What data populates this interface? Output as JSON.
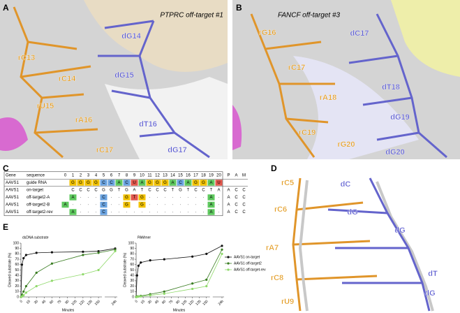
{
  "panel_a": {
    "letter": "A",
    "title": "PTPRC off-target #1",
    "labels": [
      "rC13",
      "dG14",
      "rC14",
      "dG15",
      "rU15",
      "rA16",
      "dT16",
      "rC17",
      "dG17"
    ]
  },
  "panel_b": {
    "letter": "B",
    "title": "FANCF off-target #3",
    "labels": [
      "rG16",
      "dC17",
      "rC17",
      "dT18",
      "rA18",
      "dG19",
      "rC19",
      "rG20",
      "dG20"
    ]
  },
  "panel_c": {
    "letter": "C",
    "header": [
      "Gene",
      "sequence",
      "0",
      "1",
      "2",
      "3",
      "4",
      "5",
      "6",
      "7",
      "8",
      "9",
      "10",
      "11",
      "12",
      "13",
      "14",
      "15",
      "16",
      "17",
      "18",
      "19",
      "20",
      "P",
      "A",
      "M"
    ],
    "rows": [
      [
        "AAVS1",
        "guide RNA",
        null,
        "G",
        "G",
        "G",
        "G",
        "C",
        "C",
        "A",
        "C",
        "U",
        "A",
        "G",
        "G",
        "G",
        "A",
        "C",
        "A",
        "G",
        "G",
        "A",
        "U",
        null,
        null,
        null
      ],
      [
        "AAVS1",
        "on-target",
        null,
        "C",
        "C",
        "C",
        "C",
        "G",
        "G",
        "T",
        "G",
        "A",
        "T",
        "C",
        "C",
        "C",
        "T",
        "G",
        "T",
        "C",
        "C",
        "T",
        "A",
        "A",
        "C",
        "C"
      ],
      [
        "AAVS1",
        "off-target2-A",
        null,
        "A",
        "·",
        "·",
        "·",
        "C",
        "·",
        "·",
        "G",
        "T",
        "G",
        "·",
        "·",
        "·",
        "·",
        "·",
        "·",
        "·",
        "·",
        "A",
        "·",
        "A",
        "C",
        "C"
      ],
      [
        "AAVS1",
        "off-target2-B",
        "A",
        "·",
        "·",
        "·",
        "·",
        "C",
        "·",
        "·",
        "G",
        null,
        "G",
        "·",
        "·",
        "·",
        "·",
        "·",
        "·",
        "·",
        "·",
        "A",
        "·",
        "A",
        "C",
        "C"
      ],
      [
        "AAVS1",
        "off-target2-rev",
        null,
        "A",
        "·",
        "·",
        "·",
        "C",
        "·",
        "·",
        "·",
        "·",
        "·",
        "·",
        "·",
        "·",
        "·",
        "·",
        "·",
        "·",
        "·",
        "A",
        "·",
        "A",
        "C",
        "C"
      ]
    ]
  },
  "panel_d": {
    "letter": "D",
    "labels": [
      "rC5",
      "dC",
      "rC6",
      "dG",
      "dG",
      "rA7",
      "dT",
      "rC8",
      "dG",
      "rU9"
    ]
  },
  "panel_e": {
    "letter": "E"
  },
  "chart_data": [
    {
      "type": "line",
      "title": "dsDNA substrate",
      "x_label": "Minutes",
      "y_label": "Cleaved substrate (%)",
      "x": [
        0,
        2,
        5,
        10,
        30,
        60,
        120,
        150,
        1440
      ],
      "xlim": [
        0,
        1440
      ],
      "xticks": [
        0,
        15,
        30,
        45,
        60,
        75,
        90,
        105,
        120,
        135,
        150,
        {
          "value": 1440,
          "label": "24h"
        }
      ],
      "ylim": [
        0,
        100
      ],
      "yticks": [
        0,
        10,
        20,
        30,
        40,
        50,
        60,
        70,
        80,
        90,
        100
      ],
      "series": [
        {
          "name": "AAVS1 on-target",
          "color": "#111111",
          "values": [
            0,
            60,
            72,
            78,
            82,
            83,
            84,
            85,
            90
          ]
        },
        {
          "name": "AAVS1 off-target2",
          "color": "#3a7d22",
          "values": [
            0,
            4,
            10,
            20,
            45,
            62,
            78,
            82,
            88
          ]
        },
        {
          "name": "AAVS1 off-target-rev",
          "color": "#8fd96a",
          "values": [
            0,
            1,
            3,
            8,
            20,
            30,
            42,
            50,
            85
          ]
        }
      ]
    },
    {
      "type": "line",
      "title": "PAMmer",
      "x_label": "Minutes",
      "y_label": "Cleaved substrate (%)",
      "x": [
        0,
        2,
        5,
        10,
        30,
        60,
        120,
        150,
        1440
      ],
      "xlim": [
        0,
        1440
      ],
      "xticks": [
        0,
        15,
        30,
        45,
        60,
        75,
        90,
        105,
        120,
        135,
        150,
        {
          "value": 1440,
          "label": "24h"
        }
      ],
      "ylim": [
        0,
        100
      ],
      "yticks": [
        0,
        10,
        20,
        30,
        40,
        50,
        60,
        70,
        80,
        90,
        100
      ],
      "series": [
        {
          "name": "AAVS1 on-target",
          "color": "#111111",
          "values": [
            0,
            40,
            58,
            64,
            68,
            70,
            75,
            80,
            95
          ]
        },
        {
          "name": "AAVS1 off-target2",
          "color": "#3a7d22",
          "values": [
            0,
            1,
            1,
            2,
            5,
            10,
            25,
            32,
            88
          ]
        },
        {
          "name": "AAVS1 off-target-rev",
          "color": "#8fd96a",
          "values": [
            0,
            0,
            1,
            1,
            3,
            6,
            15,
            20,
            80
          ]
        }
      ]
    }
  ]
}
